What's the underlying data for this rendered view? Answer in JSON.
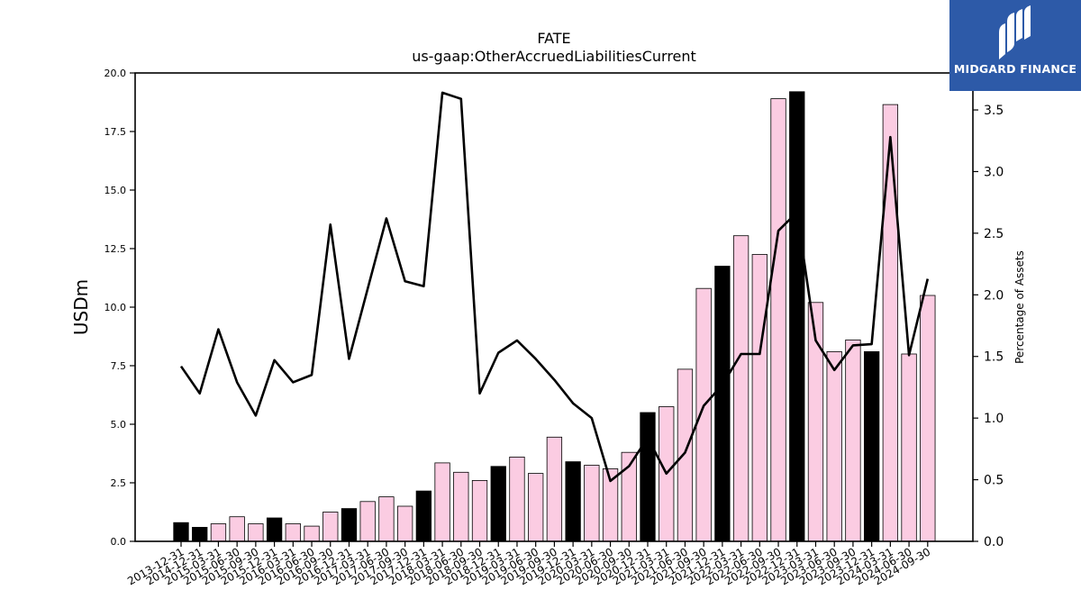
{
  "chart_data": {
    "type": "bar",
    "title": "FATE",
    "subtitle": "us-gaap:OtherAccruedLiabilitiesCurrent",
    "ylabel": "USDm",
    "y2label": "Percentage of Assets",
    "ylim": [
      0,
      20
    ],
    "y2lim": [
      0,
      3.8
    ],
    "yticks": [
      "0.0",
      "2.5",
      "5.0",
      "7.5",
      "10.0",
      "12.5",
      "15.0",
      "17.5",
      "20.0"
    ],
    "y2ticks": [
      "0.0",
      "0.5",
      "1.0",
      "1.5",
      "2.0",
      "2.5",
      "3.0",
      "3.5"
    ],
    "grid": false,
    "categories": [
      "2013-12-31",
      "2014-12-31",
      "2015-03-31",
      "2015-06-30",
      "2015-09-30",
      "2015-12-31",
      "2016-03-31",
      "2016-06-30",
      "2016-09-30",
      "2016-12-31",
      "2017-03-31",
      "2017-06-30",
      "2017-09-30",
      "2017-12-31",
      "2018-03-31",
      "2018-06-30",
      "2018-09-30",
      "2018-12-31",
      "2019-03-31",
      "2019-06-30",
      "2019-09-30",
      "2019-12-31",
      "2020-03-31",
      "2020-06-30",
      "2020-09-30",
      "2020-12-31",
      "2021-03-31",
      "2021-06-30",
      "2021-09-30",
      "2021-12-31",
      "2022-03-31",
      "2022-06-30",
      "2022-09-30",
      "2022-12-31",
      "2023-03-31",
      "2023-06-30",
      "2023-09-30",
      "2023-12-31",
      "2024-03-31",
      "2024-06-30",
      "2024-09-30"
    ],
    "series": [
      {
        "type": "bar",
        "axis": "left",
        "values": [
          0.8,
          0.6,
          0.75,
          1.05,
          0.75,
          1.0,
          0.75,
          0.65,
          1.25,
          1.4,
          1.7,
          1.9,
          1.5,
          2.15,
          3.35,
          2.95,
          2.6,
          3.2,
          3.6,
          2.9,
          4.45,
          3.4,
          3.25,
          3.1,
          3.8,
          5.5,
          5.75,
          7.35,
          10.8,
          11.75,
          13.05,
          12.25,
          18.9,
          19.2,
          10.2,
          8.1,
          8.6,
          8.1,
          18.65,
          8.0,
          10.5
        ],
        "annual": [
          true,
          true,
          false,
          false,
          false,
          true,
          false,
          false,
          false,
          true,
          false,
          false,
          false,
          true,
          false,
          false,
          false,
          true,
          false,
          false,
          false,
          true,
          false,
          false,
          false,
          true,
          false,
          false,
          false,
          true,
          false,
          false,
          false,
          true,
          false,
          false,
          false,
          true,
          false,
          false,
          false
        ]
      },
      {
        "type": "line",
        "axis": "right",
        "values": [
          1.42,
          1.2,
          1.72,
          1.29,
          1.02,
          1.47,
          1.29,
          1.35,
          2.57,
          1.48,
          2.05,
          2.62,
          2.11,
          2.07,
          3.64,
          3.59,
          1.2,
          1.53,
          1.63,
          1.48,
          1.31,
          1.12,
          1.0,
          0.49,
          0.61,
          0.84,
          0.55,
          0.72,
          1.1,
          1.27,
          1.52,
          1.52,
          2.52,
          2.67,
          1.63,
          1.39,
          1.59,
          1.6,
          3.28,
          1.51,
          2.13
        ]
      }
    ],
    "colors": {
      "annual_bar": "#000000",
      "quarter_bar": "#fbcce2",
      "bar_edge": "#000000",
      "line": "#000000"
    }
  },
  "logo": {
    "text": "MIDGARD FINANCE",
    "bg": "#2d5aa8"
  }
}
